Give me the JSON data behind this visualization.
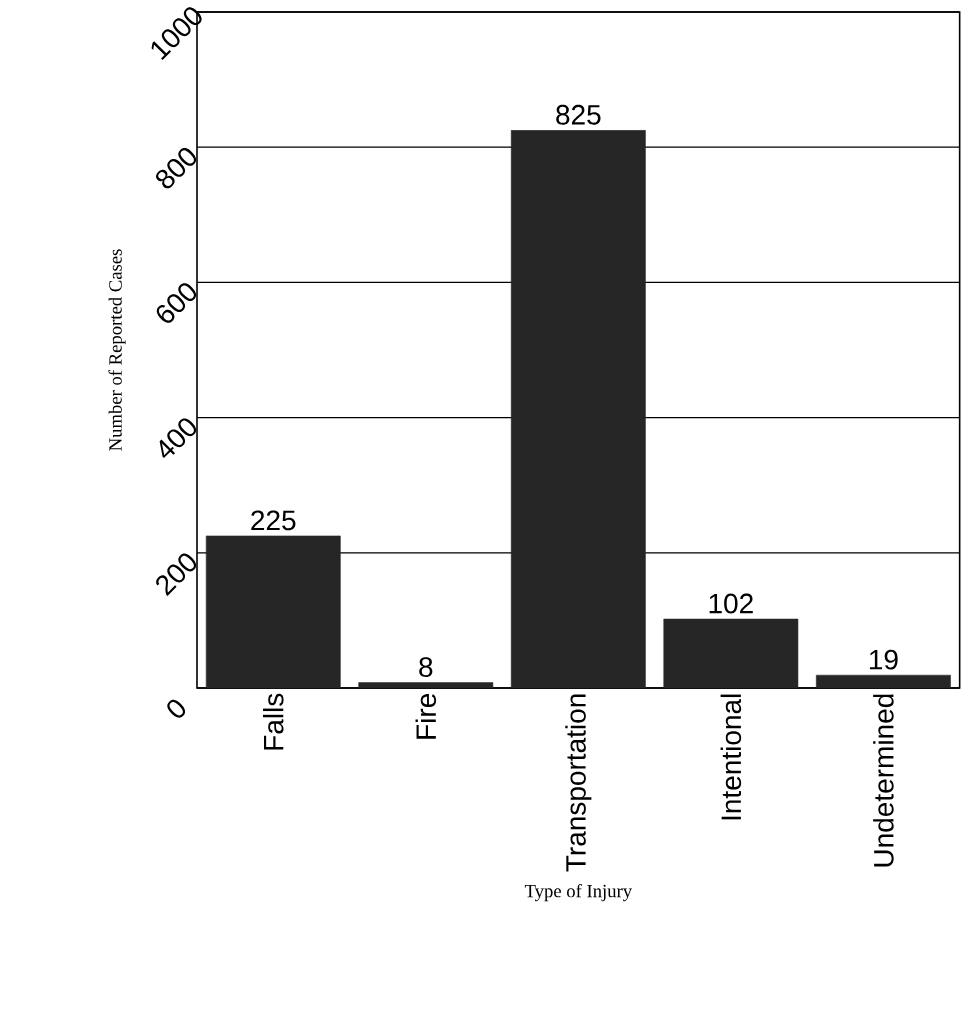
{
  "chart_data": {
    "type": "bar",
    "xlabel": "Type of Injury",
    "ylabel": "Number of Reported Cases",
    "categories": [
      "Falls",
      "Fire",
      "Transportation",
      "Intentional",
      "Undetermined"
    ],
    "values": [
      225,
      8,
      825,
      102,
      19
    ],
    "color": "#262626",
    "ylim": [
      0,
      1000
    ],
    "yticks": [
      0,
      200,
      400,
      600,
      800,
      1000
    ],
    "grid": "y",
    "data_labels": true
  }
}
